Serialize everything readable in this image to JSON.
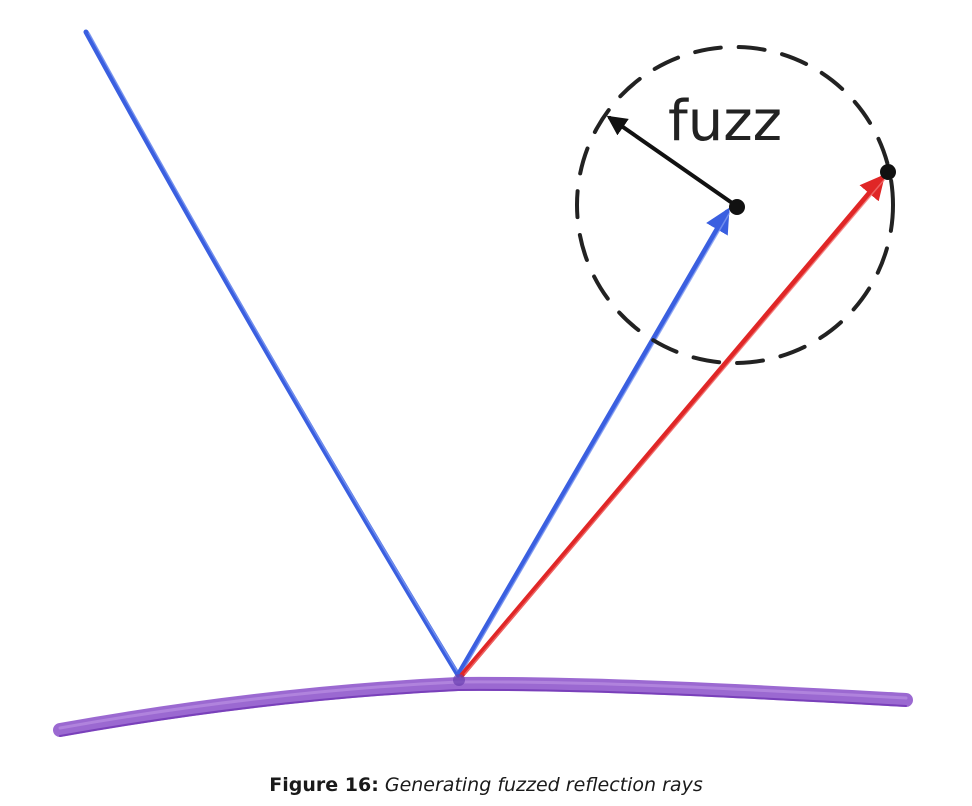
{
  "diagram": {
    "fuzz_label": "fuzz",
    "colors": {
      "incoming_ray": "#3a5fe0",
      "reflected_ray": "#3a5fe0",
      "fuzzed_ray": "#e02626",
      "surface": "#8a4fc9",
      "fuzz_sphere": "#222222",
      "fuzz_vector": "#111111"
    }
  },
  "caption": {
    "label": "Figure 16:",
    "text": "Generating fuzzed reflection rays"
  }
}
